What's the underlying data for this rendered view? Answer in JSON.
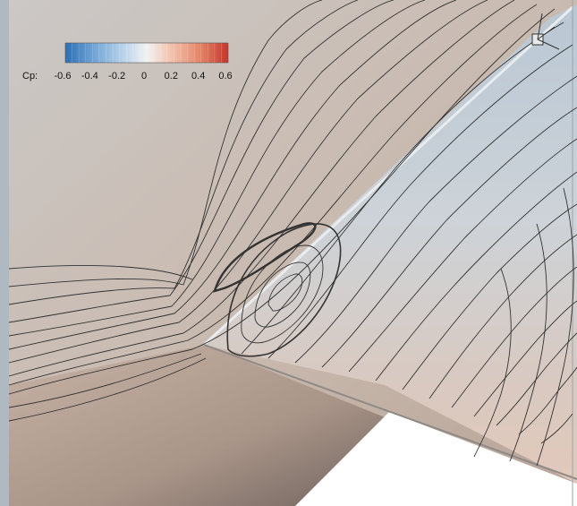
{
  "colorbar": {
    "variable": "Cp:",
    "ticks": [
      "-0.6",
      "-0.4",
      "-0.2",
      "0",
      "0.2",
      "0.4",
      "0.6"
    ],
    "range": [
      -0.6,
      0.6
    ],
    "colors": [
      "#2c6fb6",
      "#6fa3d4",
      "#b7d2ea",
      "#f2f2f2",
      "#f2c3ae",
      "#e58467",
      "#c4352a"
    ]
  }
}
